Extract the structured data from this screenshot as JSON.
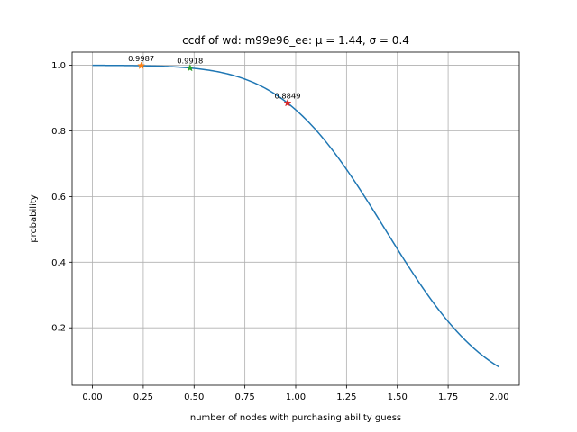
{
  "chart_data": {
    "type": "line",
    "title": "ccdf of wd: m99e96_ee: μ = 1.44, σ = 0.4",
    "xlabel": "number of nodes with purchasing ability guess",
    "ylabel": "probability",
    "xlim": [
      -0.1,
      2.1
    ],
    "ylim": [
      0.025,
      1.04
    ],
    "grid": true,
    "x_ticks": [
      "0.00",
      "0.25",
      "0.50",
      "0.75",
      "1.00",
      "1.25",
      "1.50",
      "1.75",
      "2.00"
    ],
    "y_ticks": [
      "0.2",
      "0.4",
      "0.6",
      "0.8",
      "1.0"
    ],
    "series": [
      {
        "color": "#1f77b4",
        "mu": 1.44,
        "sigma": 0.4,
        "x": [
          0.0,
          0.1,
          0.2,
          0.3,
          0.4,
          0.5,
          0.6,
          0.7,
          0.8,
          0.9,
          1.0,
          1.1,
          1.2,
          1.3,
          1.4,
          1.5,
          1.6,
          1.7,
          1.8,
          1.9,
          2.0
        ],
        "y": [
          0.9998,
          0.9996,
          0.9992,
          0.9982,
          0.9955,
          0.9906,
          0.9821,
          0.9678,
          0.9452,
          0.9115,
          0.8643,
          0.8023,
          0.7257,
          0.6368,
          0.5398,
          0.4404,
          0.3446,
          0.2578,
          0.1841,
          0.1251,
          0.0808
        ]
      }
    ],
    "markers": [
      {
        "x": 0.24,
        "y": 0.9987,
        "label": "0.9987",
        "color": "#ff7f0e"
      },
      {
        "x": 0.48,
        "y": 0.9918,
        "label": "0.9918",
        "color": "#2ca02c"
      },
      {
        "x": 0.96,
        "y": 0.8849,
        "label": "0.8849",
        "color": "#d62728"
      }
    ]
  }
}
